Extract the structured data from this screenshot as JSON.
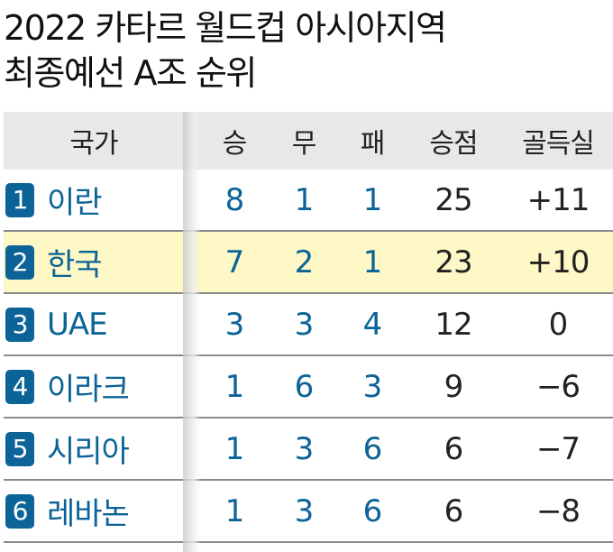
{
  "title_line1": "2022 카타르 월드컵 아시아지역",
  "title_line2": "최종예선 A조 순위",
  "colors": {
    "accent": "#0b6397",
    "highlight": "#fdf8c6",
    "header_bg": "#e8e8ea"
  },
  "chart_data": {
    "type": "table",
    "headers": [
      "국가",
      "승",
      "무",
      "패",
      "승점",
      "골득실"
    ],
    "rows": [
      {
        "rank": "1",
        "country": "이란",
        "w": "8",
        "d": "1",
        "l": "1",
        "pts": "25",
        "gd": "+11"
      },
      {
        "rank": "2",
        "country": "한국",
        "w": "7",
        "d": "2",
        "l": "1",
        "pts": "23",
        "gd": "+10",
        "highlighted": true
      },
      {
        "rank": "3",
        "country": "UAE",
        "w": "3",
        "d": "3",
        "l": "4",
        "pts": "12",
        "gd": "0"
      },
      {
        "rank": "4",
        "country": "이라크",
        "w": "1",
        "d": "6",
        "l": "3",
        "pts": "9",
        "gd": "−6"
      },
      {
        "rank": "5",
        "country": "시리아",
        "w": "1",
        "d": "3",
        "l": "6",
        "pts": "6",
        "gd": "−7"
      },
      {
        "rank": "6",
        "country": "레바논",
        "w": "1",
        "d": "3",
        "l": "6",
        "pts": "6",
        "gd": "−8"
      }
    ]
  }
}
